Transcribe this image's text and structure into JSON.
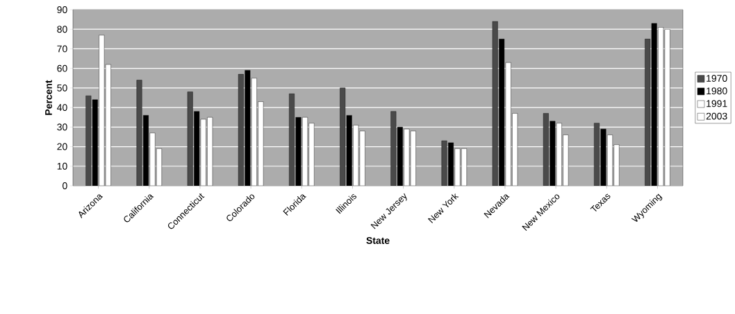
{
  "chart_data": {
    "type": "bar",
    "xlabel": "State",
    "ylabel": "Percent",
    "categories": [
      "Arizona",
      "California",
      "Connecticut",
      "Colorado",
      "Florida",
      "Illinois",
      "New Jersey",
      "New York",
      "Nevada",
      "New Mexico",
      "Texas",
      "Wyoming"
    ],
    "series": [
      {
        "name": "1970",
        "color": "#4a4a4a",
        "values": [
          46,
          54,
          48,
          57,
          47,
          50,
          38,
          23,
          84,
          37,
          32,
          75
        ]
      },
      {
        "name": "1980",
        "color": "#000000",
        "values": [
          44,
          36,
          38,
          59,
          35,
          36,
          30,
          22,
          75,
          33,
          29,
          83
        ]
      },
      {
        "name": "1991",
        "color": "#ffffff",
        "values": [
          77,
          27,
          34,
          55,
          35,
          31,
          29,
          19,
          63,
          32,
          26,
          81
        ]
      },
      {
        "name": "2003",
        "color": "#ffffff",
        "values": [
          62,
          19,
          35,
          43,
          32,
          28,
          28,
          19,
          37,
          26,
          21,
          80
        ]
      }
    ],
    "ylim": [
      0,
      90
    ],
    "yticks": [
      0,
      10,
      20,
      30,
      40,
      50,
      60,
      70,
      80,
      90
    ],
    "grid": "y",
    "legend": "right"
  }
}
